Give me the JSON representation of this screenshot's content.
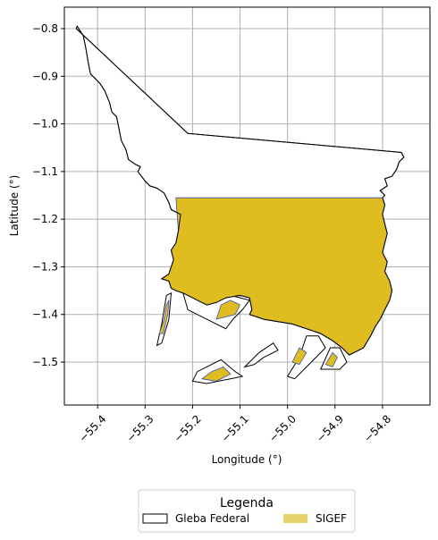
{
  "chart_data": {
    "type": "map",
    "title": "",
    "xlabel": "Longitude (°)",
    "ylabel": "Latitude (°)",
    "xlim": [
      -55.47,
      -54.7
    ],
    "ylim": [
      -1.59,
      -0.755
    ],
    "grid": true,
    "x_ticks": [
      -55.4,
      -55.3,
      -55.2,
      -55.1,
      -55.0,
      -54.9,
      -54.8
    ],
    "x_tick_labels": [
      "−55.4",
      "−55.3",
      "−55.2",
      "−55.1",
      "−55.0",
      "−54.9",
      "−54.8"
    ],
    "y_ticks": [
      -0.8,
      -0.9,
      -1.0,
      -1.1,
      -1.2,
      -1.3,
      -1.4,
      -1.5
    ],
    "y_tick_labels": [
      "−0.8",
      "−0.9",
      "−1.0",
      "−1.1",
      "−1.2",
      "−1.3",
      "−1.4",
      "−1.5"
    ],
    "legend": {
      "title": "Legenda",
      "placement": "bottom-center",
      "entries": [
        {
          "label": "Gleba Federal",
          "color": "#ffffff",
          "edge": "#000000"
        },
        {
          "label": "SIGEF",
          "color": "#e8d26a",
          "edge": "none"
        }
      ]
    },
    "colors": {
      "gleba_fill": "#ffffff",
      "gleba_edge": "#000000",
      "sigef_fill": "#dfbd20",
      "sigef_edge": "#3a4fb8",
      "grid": "#b0b0b0"
    },
    "layers": {
      "gleba_outline": [
        [
          -55.445,
          -0.8
        ],
        [
          -55.443,
          -0.795
        ],
        [
          -55.43,
          -0.815
        ],
        [
          -55.425,
          -0.84
        ],
        [
          -55.42,
          -0.87
        ],
        [
          -55.415,
          -0.895
        ],
        [
          -55.405,
          -0.905
        ],
        [
          -55.395,
          -0.915
        ],
        [
          -55.385,
          -0.93
        ],
        [
          -55.375,
          -0.955
        ],
        [
          -55.37,
          -0.975
        ],
        [
          -55.36,
          -0.985
        ],
        [
          -55.355,
          -1.01
        ],
        [
          -55.35,
          -1.035
        ],
        [
          -55.34,
          -1.055
        ],
        [
          -55.335,
          -1.075
        ],
        [
          -55.32,
          -1.085
        ],
        [
          -55.31,
          -1.09
        ],
        [
          -55.315,
          -1.1
        ],
        [
          -55.3,
          -1.12
        ],
        [
          -55.29,
          -1.13
        ],
        [
          -55.275,
          -1.135
        ],
        [
          -55.26,
          -1.145
        ],
        [
          -55.25,
          -1.165
        ],
        [
          -55.245,
          -1.18
        ],
        [
          -55.225,
          -1.19
        ],
        [
          -55.23,
          -1.225
        ],
        [
          -55.235,
          -1.25
        ],
        [
          -55.245,
          -1.265
        ],
        [
          -55.24,
          -1.285
        ],
        [
          -55.245,
          -1.3
        ],
        [
          -55.25,
          -1.315
        ],
        [
          -55.265,
          -1.325
        ],
        [
          -55.25,
          -1.33
        ],
        [
          -55.245,
          -1.345
        ],
        [
          -55.235,
          -1.35
        ],
        [
          -55.22,
          -1.355
        ],
        [
          -55.21,
          -1.36
        ],
        [
          -55.2,
          -1.365
        ],
        [
          -55.19,
          -1.37
        ],
        [
          -55.18,
          -1.375
        ],
        [
          -55.17,
          -1.38
        ],
        [
          -55.15,
          -1.375
        ],
        [
          -55.13,
          -1.365
        ],
        [
          -55.1,
          -1.36
        ],
        [
          -55.08,
          -1.365
        ],
        [
          -55.075,
          -1.39
        ],
        [
          -55.08,
          -1.4
        ],
        [
          -55.05,
          -1.41
        ],
        [
          -55.02,
          -1.415
        ],
        [
          -54.99,
          -1.42
        ],
        [
          -54.96,
          -1.43
        ],
        [
          -54.93,
          -1.44
        ],
        [
          -54.905,
          -1.455
        ],
        [
          -54.885,
          -1.47
        ],
        [
          -54.87,
          -1.485
        ],
        [
          -54.86,
          -1.48
        ],
        [
          -54.84,
          -1.47
        ],
        [
          -54.825,
          -1.445
        ],
        [
          -54.815,
          -1.425
        ],
        [
          -54.805,
          -1.41
        ],
        [
          -54.795,
          -1.39
        ],
        [
          -54.785,
          -1.37
        ],
        [
          -54.78,
          -1.35
        ],
        [
          -54.785,
          -1.33
        ],
        [
          -54.795,
          -1.31
        ],
        [
          -54.79,
          -1.29
        ],
        [
          -54.8,
          -1.27
        ],
        [
          -54.795,
          -1.25
        ],
        [
          -54.79,
          -1.23
        ],
        [
          -54.795,
          -1.21
        ],
        [
          -54.8,
          -1.19
        ],
        [
          -54.795,
          -1.17
        ],
        [
          -54.8,
          -1.155
        ],
        [
          -54.795,
          -1.15
        ],
        [
          -54.805,
          -1.14
        ],
        [
          -54.79,
          -1.13
        ],
        [
          -54.795,
          -1.115
        ],
        [
          -54.78,
          -1.11
        ],
        [
          -54.77,
          -1.095
        ],
        [
          -54.765,
          -1.08
        ],
        [
          -54.755,
          -1.07
        ],
        [
          -54.76,
          -1.06
        ],
        [
          -55.21,
          -1.02
        ],
        [
          -55.445,
          -0.8
        ]
      ],
      "gleba_parcels": [
        [
          [
            -55.275,
            -1.465
          ],
          [
            -55.265,
            -1.42
          ],
          [
            -55.255,
            -1.36
          ],
          [
            -55.245,
            -1.355
          ],
          [
            -55.25,
            -1.41
          ],
          [
            -55.265,
            -1.46
          ]
        ],
        [
          [
            -55.22,
            -1.355
          ],
          [
            -55.21,
            -1.39
          ],
          [
            -55.17,
            -1.41
          ],
          [
            -55.13,
            -1.43
          ],
          [
            -55.115,
            -1.41
          ],
          [
            -55.095,
            -1.39
          ],
          [
            -55.08,
            -1.37
          ],
          [
            -55.12,
            -1.36
          ],
          [
            -55.17,
            -1.37
          ]
        ],
        [
          [
            -55.2,
            -1.54
          ],
          [
            -55.19,
            -1.52
          ],
          [
            -55.14,
            -1.495
          ],
          [
            -55.11,
            -1.52
          ],
          [
            -55.095,
            -1.53
          ],
          [
            -55.17,
            -1.545
          ]
        ],
        [
          [
            -55.09,
            -1.51
          ],
          [
            -55.06,
            -1.48
          ],
          [
            -55.03,
            -1.46
          ],
          [
            -55.02,
            -1.475
          ],
          [
            -55.05,
            -1.49
          ],
          [
            -55.07,
            -1.505
          ]
        ],
        [
          [
            -55.0,
            -1.53
          ],
          [
            -54.975,
            -1.49
          ],
          [
            -54.96,
            -1.445
          ],
          [
            -54.935,
            -1.445
          ],
          [
            -54.92,
            -1.47
          ],
          [
            -54.96,
            -1.51
          ],
          [
            -54.985,
            -1.535
          ]
        ],
        [
          [
            -54.93,
            -1.515
          ],
          [
            -54.91,
            -1.47
          ],
          [
            -54.89,
            -1.47
          ],
          [
            -54.875,
            -1.5
          ],
          [
            -54.89,
            -1.515
          ]
        ]
      ],
      "sigef": [
        [
          [
            -55.235,
            -1.155
          ],
          [
            -54.8,
            -1.155
          ],
          [
            -54.795,
            -1.17
          ],
          [
            -54.8,
            -1.19
          ],
          [
            -54.795,
            -1.21
          ],
          [
            -54.79,
            -1.23
          ],
          [
            -54.795,
            -1.25
          ],
          [
            -54.8,
            -1.27
          ],
          [
            -54.79,
            -1.29
          ],
          [
            -54.795,
            -1.31
          ],
          [
            -54.785,
            -1.33
          ],
          [
            -54.78,
            -1.35
          ],
          [
            -54.785,
            -1.37
          ],
          [
            -54.795,
            -1.39
          ],
          [
            -54.805,
            -1.41
          ],
          [
            -54.815,
            -1.425
          ],
          [
            -54.825,
            -1.445
          ],
          [
            -54.84,
            -1.47
          ],
          [
            -54.86,
            -1.48
          ],
          [
            -54.87,
            -1.485
          ],
          [
            -54.885,
            -1.47
          ],
          [
            -54.905,
            -1.455
          ],
          [
            -54.93,
            -1.44
          ],
          [
            -54.96,
            -1.43
          ],
          [
            -54.99,
            -1.42
          ],
          [
            -55.02,
            -1.415
          ],
          [
            -55.05,
            -1.41
          ],
          [
            -55.08,
            -1.4
          ],
          [
            -55.075,
            -1.39
          ],
          [
            -55.08,
            -1.365
          ],
          [
            -55.1,
            -1.36
          ],
          [
            -55.13,
            -1.365
          ],
          [
            -55.15,
            -1.375
          ],
          [
            -55.17,
            -1.38
          ],
          [
            -55.18,
            -1.375
          ],
          [
            -55.19,
            -1.37
          ],
          [
            -55.2,
            -1.365
          ],
          [
            -55.21,
            -1.36
          ],
          [
            -55.22,
            -1.355
          ],
          [
            -55.235,
            -1.35
          ],
          [
            -55.245,
            -1.345
          ],
          [
            -55.25,
            -1.33
          ],
          [
            -55.265,
            -1.325
          ],
          [
            -55.25,
            -1.315
          ],
          [
            -55.245,
            -1.3
          ],
          [
            -55.24,
            -1.285
          ],
          [
            -55.245,
            -1.265
          ],
          [
            -55.235,
            -1.25
          ],
          [
            -55.23,
            -1.225
          ]
        ],
        [
          [
            -55.27,
            -1.44
          ],
          [
            -55.26,
            -1.41
          ],
          [
            -55.255,
            -1.38
          ],
          [
            -55.25,
            -1.37
          ],
          [
            -55.252,
            -1.4
          ],
          [
            -55.262,
            -1.44
          ]
        ],
        [
          [
            -55.15,
            -1.41
          ],
          [
            -55.14,
            -1.38
          ],
          [
            -55.12,
            -1.37
          ],
          [
            -55.1,
            -1.38
          ],
          [
            -55.11,
            -1.4
          ]
        ],
        [
          [
            -55.18,
            -1.535
          ],
          [
            -55.16,
            -1.52
          ],
          [
            -55.135,
            -1.51
          ],
          [
            -55.12,
            -1.525
          ],
          [
            -55.15,
            -1.54
          ]
        ],
        [
          [
            -54.99,
            -1.5
          ],
          [
            -54.975,
            -1.47
          ],
          [
            -54.96,
            -1.48
          ],
          [
            -54.975,
            -1.505
          ]
        ],
        [
          [
            -54.92,
            -1.505
          ],
          [
            -54.905,
            -1.48
          ],
          [
            -54.895,
            -1.49
          ],
          [
            -54.905,
            -1.51
          ]
        ]
      ]
    }
  }
}
